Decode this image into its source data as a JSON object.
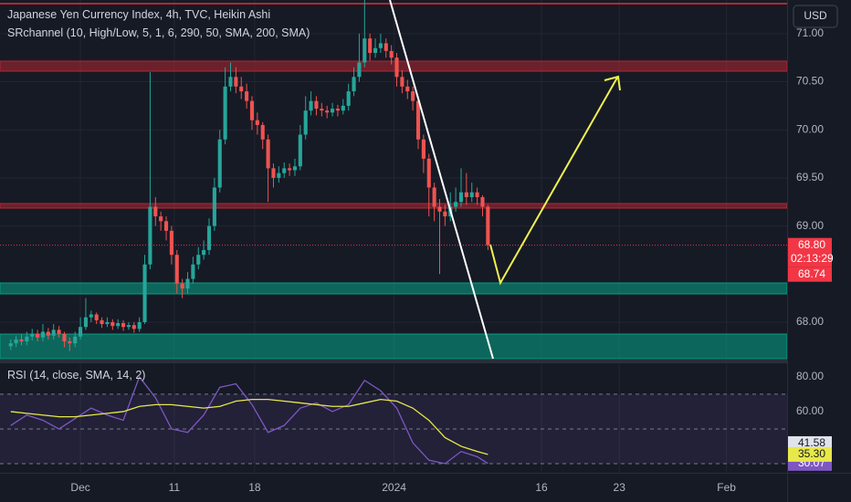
{
  "chart_data": [
    {
      "type": "candlestick",
      "title": "Japanese Yen Currency Index, 4h, TVC, Heikin Ashi",
      "subtitle": "SRchannel (10, High/Low, 5, 1, 6, 290, 50, SMA, 200, SMA)",
      "currency": "USD",
      "up_color": "#26a69a",
      "down_color": "#ef5350",
      "xlim": [
        -2,
        144.8
      ],
      "xticks": [
        {
          "value": 13,
          "label": "Dec"
        },
        {
          "value": 30.5,
          "label": "11"
        },
        {
          "value": 45.5,
          "label": "18"
        },
        {
          "value": 71.5,
          "label": "2024"
        },
        {
          "value": 99,
          "label": "16"
        },
        {
          "value": 113.5,
          "label": "23"
        },
        {
          "value": 133.5,
          "label": "Feb"
        }
      ],
      "ylim": [
        67.62,
        71.35
      ],
      "yticks": [
        {
          "value": 68,
          "label": "68.00"
        },
        {
          "value": 69,
          "label": "69.00"
        },
        {
          "value": 69.5,
          "label": "69.50"
        },
        {
          "value": 70,
          "label": "70.00"
        },
        {
          "value": 70.5,
          "label": "70.50"
        },
        {
          "value": 71,
          "label": "71.00"
        }
      ],
      "grid": true,
      "open": [
        67.75,
        67.78,
        67.82,
        67.8,
        67.85,
        67.88,
        67.84,
        67.9,
        67.86,
        67.92,
        67.88,
        67.8,
        67.78,
        67.85,
        67.95,
        68.05,
        68.08,
        68.02,
        67.98,
        68.0,
        67.96,
        67.99,
        67.95,
        67.97,
        67.93,
        68.0,
        68.6,
        69.2,
        69.1,
        69.05,
        68.95,
        68.7,
        68.4,
        68.35,
        68.45,
        68.6,
        68.7,
        68.75,
        69.0,
        69.4,
        69.9,
        70.45,
        70.55,
        70.45,
        70.4,
        70.3,
        70.1,
        70.05,
        69.9,
        69.6,
        69.5,
        69.55,
        69.6,
        69.58,
        69.62,
        69.95,
        70.2,
        70.3,
        70.22,
        70.2,
        70.18,
        70.22,
        70.2,
        70.25,
        70.4,
        70.55,
        70.7,
        70.95,
        70.8,
        70.85,
        70.9,
        70.82,
        70.75,
        70.55,
        70.45,
        70.4,
        70.3,
        69.9,
        69.7,
        69.4,
        69.2,
        69.15,
        69.1,
        69.2,
        69.25,
        69.35,
        69.3,
        69.35,
        69.3,
        69.2
      ],
      "high": [
        67.82,
        67.86,
        67.87,
        67.9,
        67.93,
        67.92,
        67.98,
        67.94,
        67.98,
        67.96,
        67.9,
        67.84,
        67.9,
        68.05,
        68.25,
        68.12,
        68.1,
        68.05,
        68.05,
        68.03,
        68.03,
        68.02,
        68.0,
        68.0,
        68.05,
        68.7,
        70.6,
        69.3,
        69.15,
        69.1,
        69.0,
        68.75,
        68.45,
        68.52,
        68.68,
        68.78,
        68.85,
        69.08,
        69.5,
        70.0,
        70.65,
        70.7,
        70.65,
        70.55,
        70.48,
        70.35,
        70.18,
        70.08,
        69.95,
        69.65,
        69.62,
        69.66,
        69.65,
        69.7,
        70.05,
        70.35,
        70.4,
        70.35,
        70.28,
        70.25,
        70.28,
        70.26,
        70.32,
        70.48,
        70.65,
        71.0,
        71.35,
        71.0,
        70.95,
        71.0,
        70.95,
        70.88,
        70.8,
        70.62,
        70.52,
        70.45,
        70.35,
        69.95,
        69.75,
        69.45,
        69.28,
        69.22,
        69.35,
        69.4,
        69.6,
        69.55,
        69.45,
        69.4,
        69.32,
        69.22
      ],
      "low": [
        67.71,
        67.74,
        67.76,
        67.76,
        67.81,
        67.8,
        67.8,
        67.82,
        67.82,
        67.84,
        67.74,
        67.7,
        67.74,
        67.82,
        67.92,
        68.0,
        67.98,
        67.94,
        67.95,
        67.92,
        67.93,
        67.91,
        67.92,
        67.89,
        67.9,
        67.98,
        68.55,
        69.0,
        68.95,
        68.85,
        68.6,
        68.3,
        68.25,
        68.3,
        68.4,
        68.55,
        68.65,
        68.7,
        68.95,
        69.35,
        69.85,
        70.4,
        70.38,
        70.32,
        70.22,
        70.0,
        69.95,
        69.8,
        69.25,
        69.4,
        69.45,
        69.5,
        69.52,
        69.52,
        69.58,
        69.9,
        70.15,
        70.15,
        70.14,
        70.12,
        70.14,
        70.14,
        70.16,
        70.2,
        70.35,
        70.5,
        70.65,
        70.72,
        70.75,
        70.8,
        70.75,
        70.68,
        70.45,
        70.38,
        70.32,
        70.2,
        69.8,
        69.55,
        69.1,
        69.05,
        68.5,
        69.0,
        69.05,
        69.15,
        69.2,
        69.22,
        69.25,
        69.22,
        69.1,
        68.75
      ],
      "close": [
        67.78,
        67.82,
        67.8,
        67.85,
        67.88,
        67.84,
        67.9,
        67.86,
        67.92,
        67.88,
        67.8,
        67.78,
        67.85,
        67.95,
        68.05,
        68.08,
        68.02,
        67.98,
        68.0,
        67.96,
        67.99,
        67.95,
        67.97,
        67.93,
        68.0,
        68.6,
        69.2,
        69.1,
        69.05,
        68.95,
        68.7,
        68.4,
        68.35,
        68.45,
        68.6,
        68.7,
        68.75,
        69.0,
        69.4,
        69.9,
        70.45,
        70.55,
        70.45,
        70.4,
        70.3,
        70.1,
        70.05,
        69.9,
        69.6,
        69.5,
        69.55,
        69.6,
        69.58,
        69.62,
        69.95,
        70.2,
        70.3,
        70.22,
        70.2,
        70.18,
        70.22,
        70.2,
        70.25,
        70.4,
        70.55,
        70.7,
        70.95,
        70.8,
        70.85,
        70.9,
        70.82,
        70.75,
        70.55,
        70.45,
        70.4,
        70.3,
        69.9,
        69.7,
        69.4,
        69.2,
        69.15,
        69.1,
        69.2,
        69.25,
        69.35,
        69.3,
        69.35,
        69.3,
        69.2,
        68.8
      ],
      "last_price": {
        "value": 68.8,
        "label": "68.80",
        "countdown": "02:13:29",
        "color": "#f23645"
      },
      "marker": {
        "value": 68.74,
        "label": "68.74",
        "color": "#f23645"
      }
    },
    {
      "type": "line",
      "title": "RSI (14, close, SMA, 14, 2)",
      "xlim": [
        -2,
        144.8
      ],
      "ylim": [
        26.3,
        86.8
      ],
      "yticks": [
        {
          "value": 80,
          "label": "80.00"
        },
        {
          "value": 60,
          "label": "60.00"
        }
      ],
      "levels": [
        70,
        50,
        30
      ],
      "band_color": "#7e57c2",
      "x": [
        0,
        3,
        6,
        9,
        12,
        15,
        18,
        21,
        24,
        27,
        30,
        33,
        36,
        39,
        42,
        45,
        48,
        51,
        54,
        57,
        60,
        63,
        66,
        69,
        72,
        75,
        78,
        81,
        84,
        87,
        89
      ],
      "series": [
        {
          "color": "#7e57c2",
          "values": [
            52,
            58,
            55,
            50,
            56,
            62,
            58,
            55,
            80,
            68,
            50,
            48,
            58,
            74,
            76,
            64,
            48,
            52,
            62,
            65,
            60,
            64,
            78,
            72,
            62,
            42,
            32,
            30,
            37,
            34,
            30.07
          ]
        },
        {
          "color": "#e8e84a",
          "values": [
            60,
            59,
            58,
            57,
            57,
            58,
            59,
            60,
            63,
            64,
            64,
            63,
            62,
            63,
            66,
            67,
            67,
            66,
            65,
            64,
            63,
            63,
            65,
            67,
            66,
            62,
            55,
            45,
            40,
            37,
            35.3
          ],
          "last_label": "35.30"
        }
      ],
      "level_marker": 41.58
    }
  ]
}
